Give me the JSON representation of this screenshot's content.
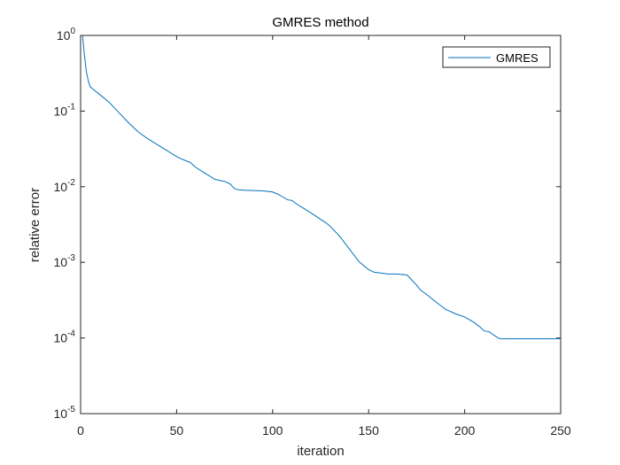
{
  "chart_data": {
    "type": "line",
    "title": "GMRES method",
    "xlabel": "iteration",
    "ylabel": "relative error",
    "xlim": [
      0,
      250
    ],
    "ylim": [
      1e-05,
      1
    ],
    "yscale": "log",
    "grid": false,
    "legend_position": "top-right",
    "x_ticks": [
      0,
      50,
      100,
      150,
      200,
      250
    ],
    "y_ticks": [
      {
        "value": 1,
        "base": "10",
        "exp": "0"
      },
      {
        "value": 0.1,
        "base": "10",
        "exp": "-1"
      },
      {
        "value": 0.01,
        "base": "10",
        "exp": "-2"
      },
      {
        "value": 0.001,
        "base": "10",
        "exp": "-3"
      },
      {
        "value": 0.0001,
        "base": "10",
        "exp": "-4"
      },
      {
        "value": 1e-05,
        "base": "10",
        "exp": "-5"
      }
    ],
    "series": [
      {
        "name": "GMRES",
        "color": "#0072BD",
        "x": [
          1,
          2,
          3,
          4,
          5,
          7,
          10,
          15,
          20,
          25,
          30,
          35,
          40,
          45,
          50,
          53,
          55,
          57,
          60,
          65,
          70,
          73,
          75,
          78,
          80,
          82,
          85,
          90,
          95,
          100,
          103,
          105,
          108,
          110,
          113,
          115,
          120,
          125,
          128,
          130,
          135,
          140,
          145,
          150,
          153,
          155,
          160,
          165,
          170,
          172,
          175,
          177,
          180,
          185,
          190,
          195,
          200,
          205,
          208,
          210,
          213,
          215,
          218,
          220,
          225,
          230,
          235,
          240,
          245,
          250
        ],
        "y": [
          1.0,
          0.55,
          0.33,
          0.25,
          0.21,
          0.19,
          0.165,
          0.13,
          0.095,
          0.07,
          0.053,
          0.043,
          0.036,
          0.03,
          0.025,
          0.023,
          0.022,
          0.021,
          0.018,
          0.015,
          0.0125,
          0.012,
          0.0118,
          0.0108,
          0.0095,
          0.0091,
          0.009,
          0.0089,
          0.0088,
          0.0085,
          0.0079,
          0.0074,
          0.0067,
          0.0066,
          0.0058,
          0.0054,
          0.0045,
          0.0037,
          0.0033,
          0.003,
          0.0022,
          0.0015,
          0.00102,
          0.0008,
          0.00074,
          0.00073,
          0.0007,
          0.0007,
          0.00068,
          0.0006,
          0.0005,
          0.00043,
          0.00038,
          0.0003,
          0.00024,
          0.00021,
          0.00019,
          0.00016,
          0.00014,
          0.000125,
          0.00012,
          0.00011,
          9.8e-05,
          9.75e-05,
          9.75e-05,
          9.75e-05,
          9.75e-05,
          9.75e-05,
          9.75e-05,
          9.85e-05
        ]
      }
    ]
  }
}
